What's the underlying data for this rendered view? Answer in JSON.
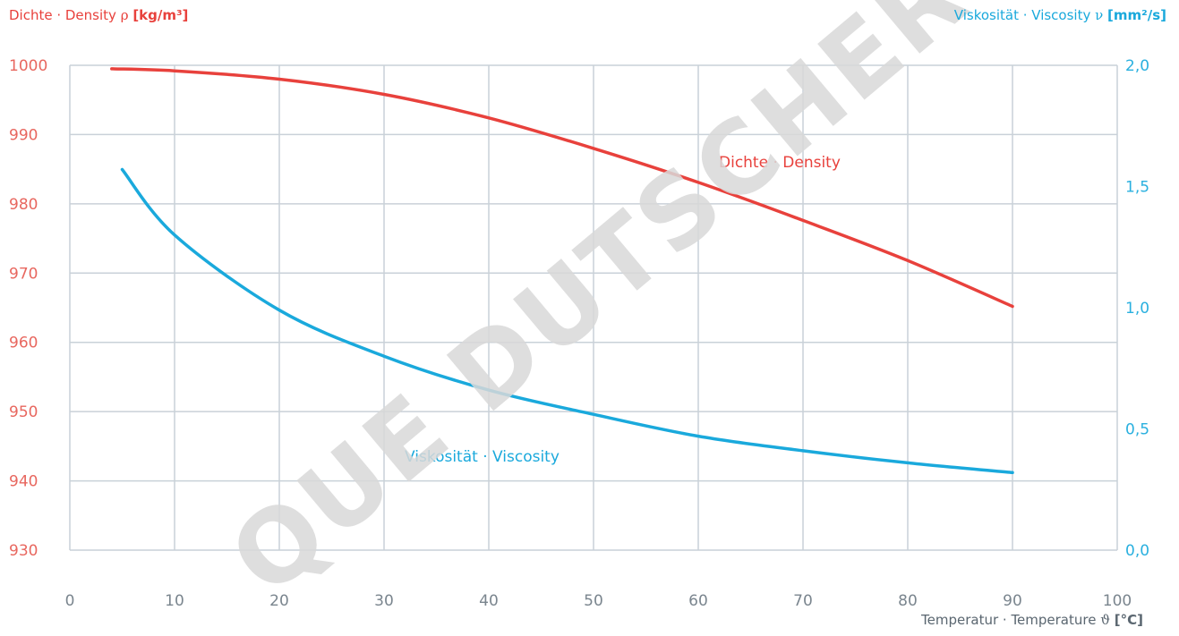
{
  "watermark": "QUE DUTSCHER",
  "axis_titles": {
    "left_plain": "Dichte · Density",
    "left_symbol": "ρ",
    "left_unit": "[kg/m³]",
    "right_plain": "Viskosität · Viscosity",
    "right_symbol": "ν",
    "right_unit": "[mm²/s]",
    "bottom_plain": "Temperatur · Temperature",
    "bottom_symbol": "ϑ",
    "bottom_unit": "[°C]"
  },
  "colors": {
    "density": "#e8413c",
    "viscosity": "#1aa9dc",
    "grid": "#c9d1d8",
    "axis_text": "#7a858e"
  },
  "chart_data": {
    "type": "line",
    "x_axis": {
      "min": 0,
      "max": 100,
      "ticks": [
        "0",
        "10",
        "20",
        "30",
        "40",
        "50",
        "60",
        "70",
        "80",
        "90",
        "100"
      ]
    },
    "y_left": {
      "min": 930,
      "max": 1000,
      "ticks": [
        "930",
        "940",
        "950",
        "960",
        "970",
        "980",
        "990",
        "1000"
      ]
    },
    "y_right": {
      "min": 0,
      "max": 2,
      "ticks": [
        "0,0",
        "0,5",
        "1,0",
        "1,5",
        "2,0"
      ]
    },
    "grid": true,
    "series": [
      {
        "name": "Dichte · Density",
        "axis": "left",
        "color": "#e8413c",
        "x": [
          4,
          10,
          20,
          30,
          40,
          50,
          60,
          70,
          80,
          90
        ],
        "y": [
          999.5,
          999.2,
          998.0,
          995.8,
          992.4,
          988.0,
          983.1,
          977.6,
          971.8,
          965.2
        ]
      },
      {
        "name": "Viskosität · Viscosity",
        "axis": "right",
        "color": "#1aa9dc",
        "x": [
          5,
          10,
          20,
          30,
          40,
          50,
          60,
          70,
          80,
          90
        ],
        "y": [
          1.57,
          1.3,
          0.99,
          0.8,
          0.66,
          0.56,
          0.47,
          0.41,
          0.36,
          0.32
        ]
      }
    ]
  }
}
